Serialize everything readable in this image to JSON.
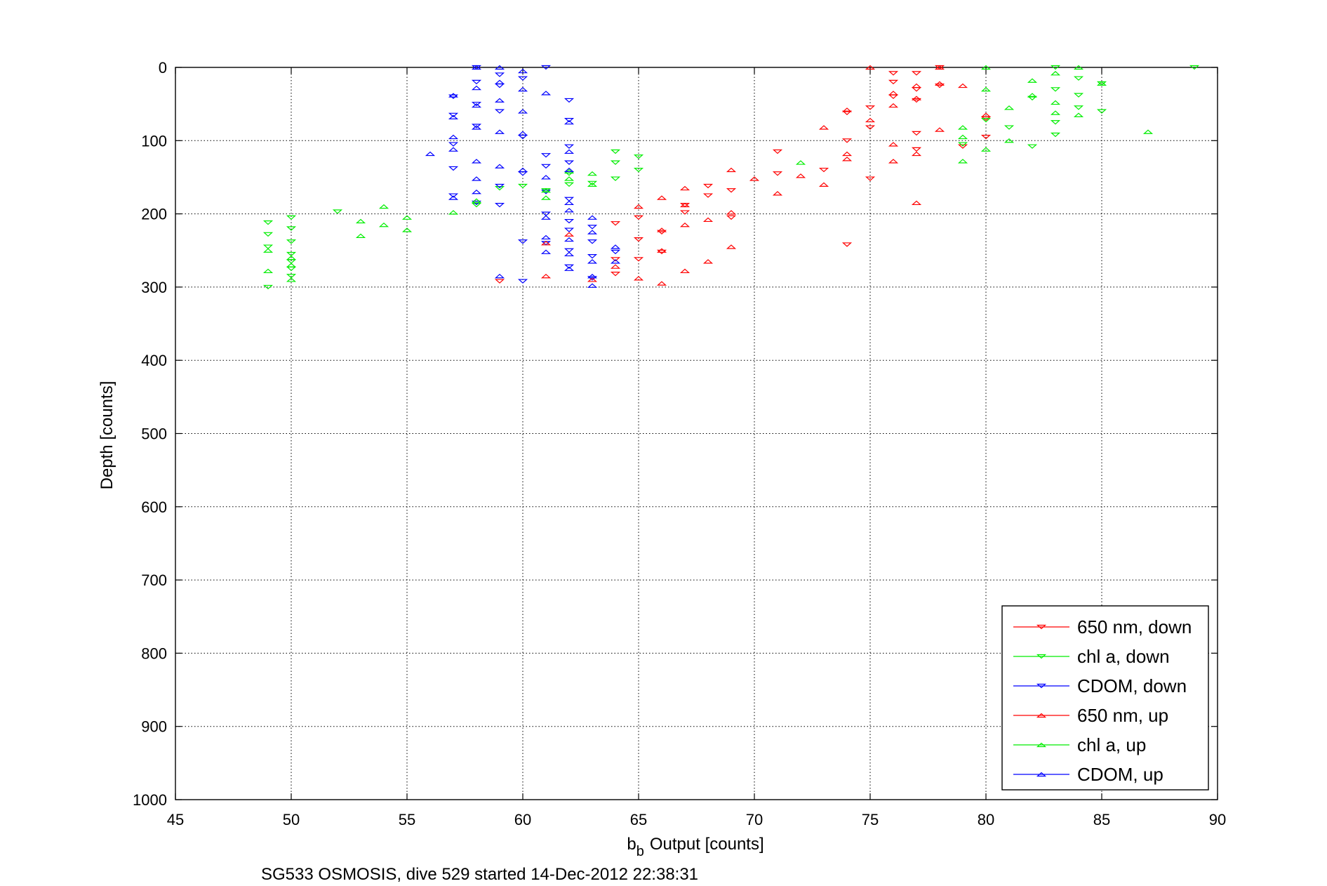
{
  "chart_data": {
    "type": "scatter",
    "xlabel": "Output [counts]",
    "xlabel_symbol": "b",
    "xlabel_subscript": "b",
    "ylabel": "Depth [counts]",
    "caption": "SG533 OSMOSIS, dive 529 started 14-Dec-2012 22:38:31",
    "xlim": [
      45,
      90
    ],
    "ylim": [
      0,
      1000
    ],
    "y_reversed": true,
    "grid": true,
    "x_ticks": [
      45,
      50,
      55,
      60,
      65,
      70,
      75,
      80,
      85,
      90
    ],
    "y_ticks": [
      0,
      100,
      200,
      300,
      400,
      500,
      600,
      700,
      800,
      900,
      1000
    ],
    "legend_position": "bottom-right",
    "series": [
      {
        "name": "650 nm, down",
        "color": "#ff0000",
        "marker": "triangle-down",
        "points": [
          [
            59,
            292
          ],
          [
            64,
            213
          ],
          [
            64,
            262
          ],
          [
            64,
            282
          ],
          [
            65,
            205
          ],
          [
            65,
            235
          ],
          [
            65,
            262
          ],
          [
            66,
            225
          ],
          [
            66,
            252
          ],
          [
            67,
            188
          ],
          [
            67,
            198
          ],
          [
            68,
            162
          ],
          [
            68,
            175
          ],
          [
            69,
            168
          ],
          [
            69,
            205
          ],
          [
            71,
            115
          ],
          [
            71,
            145
          ],
          [
            73,
            140
          ],
          [
            74,
            62
          ],
          [
            74,
            100
          ],
          [
            74,
            242
          ],
          [
            75,
            55
          ],
          [
            75,
            82
          ],
          [
            75,
            152
          ],
          [
            76,
            8
          ],
          [
            76,
            20
          ],
          [
            76,
            40
          ],
          [
            77,
            8
          ],
          [
            77,
            30
          ],
          [
            77,
            45
          ],
          [
            77,
            90
          ],
          [
            77,
            112
          ],
          [
            78,
            0
          ],
          [
            78,
            25
          ],
          [
            79,
            108
          ],
          [
            80,
            70
          ],
          [
            80,
            95
          ]
        ]
      },
      {
        "name": "chl a, down",
        "color": "#00ee00",
        "marker": "triangle-down",
        "points": [
          [
            49,
            212
          ],
          [
            49,
            228
          ],
          [
            49,
            245
          ],
          [
            49,
            300
          ],
          [
            50,
            205
          ],
          [
            50,
            220
          ],
          [
            50,
            238
          ],
          [
            50,
            255
          ],
          [
            50,
            265
          ],
          [
            50,
            275
          ],
          [
            50,
            285
          ],
          [
            52,
            197
          ],
          [
            58,
            188
          ],
          [
            59,
            165
          ],
          [
            60,
            162
          ],
          [
            61,
            168
          ],
          [
            62,
            145
          ],
          [
            62,
            160
          ],
          [
            63,
            158
          ],
          [
            64,
            115
          ],
          [
            64,
            130
          ],
          [
            64,
            152
          ],
          [
            65,
            122
          ],
          [
            65,
            140
          ],
          [
            79,
            105
          ],
          [
            80,
            72
          ],
          [
            81,
            82
          ],
          [
            82,
            108
          ],
          [
            82,
            42
          ],
          [
            83,
            0
          ],
          [
            83,
            30
          ],
          [
            83,
            75
          ],
          [
            83,
            92
          ],
          [
            84,
            15
          ],
          [
            84,
            38
          ],
          [
            84,
            55
          ],
          [
            85,
            22
          ],
          [
            85,
            60
          ],
          [
            89,
            0
          ]
        ]
      },
      {
        "name": "CDOM, down",
        "color": "#0000ff",
        "marker": "triangle-down",
        "points": [
          [
            57,
            40
          ],
          [
            57,
            65
          ],
          [
            57,
            105
          ],
          [
            57,
            138
          ],
          [
            57,
            175
          ],
          [
            58,
            0
          ],
          [
            58,
            20
          ],
          [
            58,
            50
          ],
          [
            58,
            80
          ],
          [
            58,
            185
          ],
          [
            59,
            10
          ],
          [
            59,
            25
          ],
          [
            59,
            60
          ],
          [
            59,
            162
          ],
          [
            59,
            188
          ],
          [
            60,
            15
          ],
          [
            60,
            95
          ],
          [
            60,
            145
          ],
          [
            60,
            238
          ],
          [
            60,
            292
          ],
          [
            61,
            0
          ],
          [
            61,
            120
          ],
          [
            61,
            135
          ],
          [
            61,
            170
          ],
          [
            61,
            200
          ],
          [
            61,
            240
          ],
          [
            62,
            45
          ],
          [
            62,
            72
          ],
          [
            62,
            108
          ],
          [
            62,
            130
          ],
          [
            62,
            180
          ],
          [
            62,
            210
          ],
          [
            62,
            222
          ],
          [
            62,
            250
          ],
          [
            62,
            272
          ],
          [
            63,
            218
          ],
          [
            63,
            238
          ],
          [
            63,
            258
          ],
          [
            63,
            288
          ],
          [
            64,
            252
          ]
        ]
      },
      {
        "name": "650 nm, up",
        "color": "#ff0000",
        "marker": "triangle-up",
        "points": [
          [
            61,
            240
          ],
          [
            61,
            285
          ],
          [
            62,
            228
          ],
          [
            63,
            290
          ],
          [
            64,
            272
          ],
          [
            65,
            190
          ],
          [
            65,
            288
          ],
          [
            66,
            178
          ],
          [
            66,
            222
          ],
          [
            66,
            250
          ],
          [
            66,
            295
          ],
          [
            67,
            165
          ],
          [
            67,
            188
          ],
          [
            67,
            215
          ],
          [
            67,
            278
          ],
          [
            68,
            208
          ],
          [
            68,
            265
          ],
          [
            69,
            140
          ],
          [
            69,
            198
          ],
          [
            69,
            245
          ],
          [
            70,
            152
          ],
          [
            71,
            172
          ],
          [
            72,
            148
          ],
          [
            73,
            82
          ],
          [
            73,
            160
          ],
          [
            74,
            58
          ],
          [
            74,
            118
          ],
          [
            74,
            125
          ],
          [
            75,
            0
          ],
          [
            75,
            72
          ],
          [
            76,
            35
          ],
          [
            76,
            52
          ],
          [
            76,
            105
          ],
          [
            76,
            128
          ],
          [
            77,
            25
          ],
          [
            77,
            42
          ],
          [
            77,
            118
          ],
          [
            77,
            185
          ],
          [
            78,
            0
          ],
          [
            78,
            22
          ],
          [
            78,
            85
          ],
          [
            79,
            25
          ],
          [
            80,
            65
          ]
        ]
      },
      {
        "name": "chl a, up",
        "color": "#00ee00",
        "marker": "triangle-up",
        "points": [
          [
            49,
            250
          ],
          [
            49,
            278
          ],
          [
            50,
            260
          ],
          [
            50,
            270
          ],
          [
            50,
            290
          ],
          [
            53,
            210
          ],
          [
            53,
            230
          ],
          [
            54,
            215
          ],
          [
            54,
            190
          ],
          [
            55,
            205
          ],
          [
            55,
            222
          ],
          [
            57,
            198
          ],
          [
            58,
            182
          ],
          [
            61,
            168
          ],
          [
            61,
            178
          ],
          [
            62,
            142
          ],
          [
            62,
            152
          ],
          [
            63,
            145
          ],
          [
            63,
            160
          ],
          [
            72,
            130
          ],
          [
            79,
            82
          ],
          [
            79,
            95
          ],
          [
            79,
            128
          ],
          [
            80,
            0
          ],
          [
            80,
            30
          ],
          [
            80,
            112
          ],
          [
            81,
            55
          ],
          [
            81,
            100
          ],
          [
            82,
            18
          ],
          [
            82,
            38
          ],
          [
            83,
            8
          ],
          [
            83,
            48
          ],
          [
            83,
            62
          ],
          [
            84,
            0
          ],
          [
            84,
            65
          ],
          [
            85,
            22
          ],
          [
            87,
            88
          ]
        ]
      },
      {
        "name": "CDOM, up",
        "color": "#0000ff",
        "marker": "triangle-up",
        "points": [
          [
            56,
            118
          ],
          [
            57,
            38
          ],
          [
            57,
            68
          ],
          [
            57,
            95
          ],
          [
            57,
            112
          ],
          [
            57,
            178
          ],
          [
            58,
            0
          ],
          [
            58,
            28
          ],
          [
            58,
            52
          ],
          [
            58,
            82
          ],
          [
            58,
            128
          ],
          [
            58,
            152
          ],
          [
            58,
            170
          ],
          [
            59,
            0
          ],
          [
            59,
            20
          ],
          [
            59,
            45
          ],
          [
            59,
            88
          ],
          [
            59,
            135
          ],
          [
            59,
            285
          ],
          [
            60,
            5
          ],
          [
            60,
            30
          ],
          [
            60,
            60
          ],
          [
            60,
            90
          ],
          [
            60,
            140
          ],
          [
            61,
            35
          ],
          [
            61,
            150
          ],
          [
            61,
            205
          ],
          [
            61,
            232
          ],
          [
            61,
            252
          ],
          [
            62,
            75
          ],
          [
            62,
            115
          ],
          [
            62,
            140
          ],
          [
            62,
            185
          ],
          [
            62,
            195
          ],
          [
            62,
            235
          ],
          [
            62,
            255
          ],
          [
            62,
            275
          ],
          [
            63,
            205
          ],
          [
            63,
            225
          ],
          [
            63,
            265
          ],
          [
            63,
            285
          ],
          [
            63,
            298
          ],
          [
            64,
            245
          ],
          [
            64,
            265
          ]
        ]
      }
    ]
  }
}
